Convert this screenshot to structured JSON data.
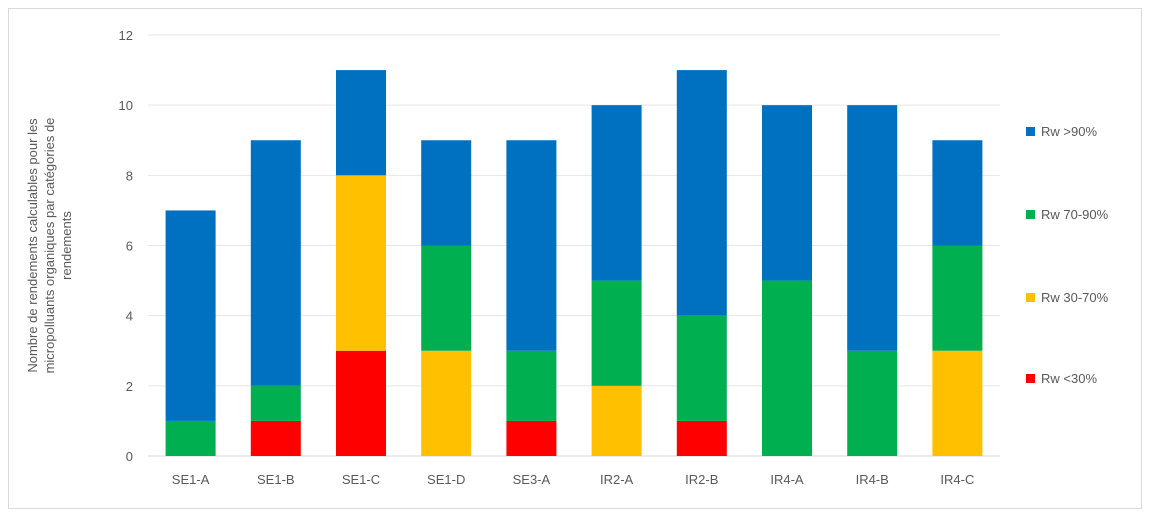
{
  "chart_data": {
    "type": "bar",
    "stacked": true,
    "title": "",
    "xlabel": "",
    "ylabel_lines": [
      "Nombre de rendements calculables pour les",
      "micropolluants organiques par catégories de",
      "rendements"
    ],
    "ylim": [
      0,
      12
    ],
    "yticks": [
      0,
      2,
      4,
      6,
      8,
      10,
      12
    ],
    "grid": true,
    "legend_position": "right",
    "categories": [
      "SE1-A",
      "SE1-B",
      "SE1-C",
      "SE1-D",
      "SE3-A",
      "IR2-A",
      "IR2-B",
      "IR4-A",
      "IR4-B",
      "IR4-C"
    ],
    "series": [
      {
        "name": "Rw <30%",
        "color": "#ff0000",
        "values": [
          0,
          1,
          3,
          0,
          1,
          0,
          1,
          0,
          0,
          0
        ]
      },
      {
        "name": "Rw 30-70%",
        "color": "#ffc000",
        "values": [
          0,
          0,
          5,
          3,
          0,
          2,
          0,
          0,
          0,
          3
        ]
      },
      {
        "name": "Rw 70-90%",
        "color": "#00b050",
        "values": [
          1,
          1,
          0,
          3,
          2,
          3,
          3,
          5,
          3,
          3
        ]
      },
      {
        "name": "Rw >90%",
        "color": "#0070c0",
        "values": [
          6,
          7,
          3,
          3,
          6,
          5,
          7,
          5,
          7,
          3
        ]
      }
    ],
    "legend_order": [
      "Rw >90%",
      "Rw 70-90%",
      "Rw 30-70%",
      "Rw <30%"
    ]
  }
}
